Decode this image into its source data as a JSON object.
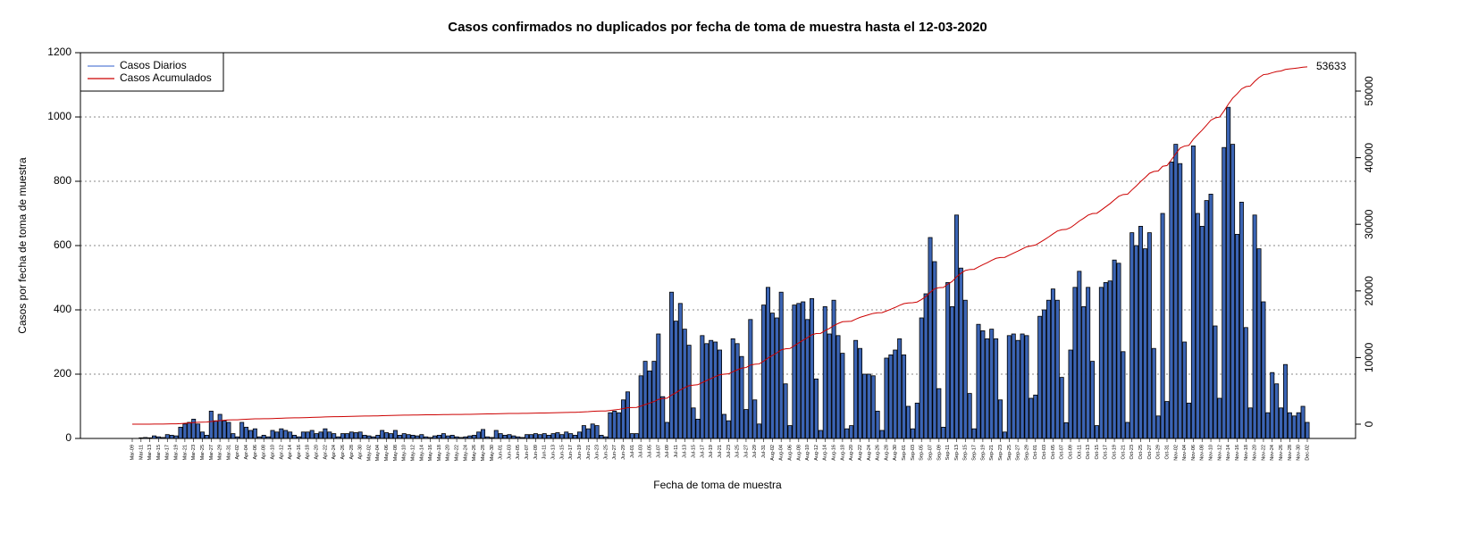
{
  "chart_data": {
    "type": "bar",
    "title": "Casos confirmados no duplicados por fecha de toma de muestra hasta el 12-03-2020",
    "x_label": "Fecha de toma de muestra",
    "y_label": "Casos por fecha de toma de muestra",
    "categories": [
      "Mar-09",
      null,
      "Mar-11",
      null,
      "Mar-13",
      null,
      "Mar-15",
      null,
      "Mar-17",
      null,
      "Mar-19",
      null,
      "Mar-21",
      null,
      "Mar-23",
      null,
      "Mar-25",
      null,
      "Mar-27",
      null,
      "Mar-29",
      null,
      "Mar-31",
      null,
      "Apr-02",
      null,
      "Apr-04",
      null,
      "Apr-06",
      null,
      "Apr-08",
      null,
      "Apr-10",
      null,
      "Apr-12",
      null,
      "Apr-14",
      null,
      "Apr-16",
      null,
      "Apr-18",
      null,
      "Apr-20",
      null,
      "Apr-22",
      null,
      "Apr-24",
      null,
      "Apr-26",
      null,
      "Apr-28",
      null,
      "Apr-30",
      null,
      "May-02",
      null,
      "May-04",
      null,
      "May-06",
      null,
      "May-08",
      null,
      "May-10",
      null,
      "May-12",
      null,
      "May-14",
      null,
      "May-16",
      null,
      "May-18",
      null,
      "May-20",
      null,
      "May-22",
      null,
      "May-24",
      null,
      "May-26",
      null,
      "May-28",
      null,
      "May-30",
      null,
      "Jun-01",
      null,
      "Jun-03",
      null,
      "Jun-05",
      null,
      "Jun-07",
      null,
      "Jun-09",
      null,
      "Jun-11",
      null,
      "Jun-13",
      null,
      "Jun-15",
      null,
      "Jun-17",
      null,
      "Jun-19",
      null,
      "Jun-21",
      null,
      "Jun-23",
      null,
      "Jun-25",
      null,
      "Jun-27",
      null,
      "Jun-29",
      null,
      "Jul-01",
      null,
      "Jul-03",
      null,
      "Jul-05",
      null,
      "Jul-07",
      null,
      "Jul-09",
      null,
      "Jul-11",
      null,
      "Jul-13",
      null,
      "Jul-15",
      null,
      "Jul-17",
      null,
      "Jul-19",
      null,
      "Jul-21",
      null,
      "Jul-23",
      null,
      "Jul-25",
      null,
      "Jul-27",
      null,
      "Jul-29",
      null,
      "Jul-31",
      null,
      "Aug-02",
      null,
      "Aug-04",
      null,
      "Aug-06",
      null,
      "Aug-08",
      null,
      "Aug-10",
      null,
      "Aug-12",
      null,
      "Aug-14",
      null,
      "Aug-16",
      null,
      "Aug-18",
      null,
      "Aug-20",
      null,
      "Aug-22",
      null,
      "Aug-24",
      null,
      "Aug-26",
      null,
      "Aug-28",
      null,
      "Aug-30",
      null,
      "Sep-01",
      null,
      "Sep-03",
      null,
      "Sep-05",
      null,
      "Sep-07",
      null,
      "Sep-09",
      null,
      "Sep-11",
      null,
      "Sep-13",
      null,
      "Sep-15",
      null,
      "Sep-17",
      null,
      "Sep-19",
      null,
      "Sep-21",
      null,
      "Sep-23",
      null,
      "Sep-25",
      null,
      "Sep-27",
      null,
      "Sep-29",
      null,
      "Oct-01",
      null,
      "Oct-03",
      null,
      "Oct-05",
      null,
      "Oct-07",
      null,
      "Oct-09",
      null,
      "Oct-11",
      null,
      "Oct-13",
      null,
      "Oct-15",
      null,
      "Oct-17",
      null,
      "Oct-19",
      null,
      "Oct-21",
      null,
      "Oct-23",
      null,
      "Oct-25",
      null,
      "Oct-27",
      null,
      "Oct-29",
      null,
      "Oct-31",
      null,
      "Nov-02",
      null,
      "Nov-04",
      null,
      "Nov-06",
      null,
      "Nov-08",
      null,
      "Nov-10",
      null,
      "Nov-12",
      null,
      "Nov-14",
      null,
      "Nov-16",
      null,
      "Nov-18",
      null,
      "Nov-20",
      null,
      "Nov-22",
      null,
      "Nov-24",
      null,
      "Nov-26",
      null,
      "Nov-28",
      null,
      "Nov-30",
      null,
      "Dec-02"
    ],
    "series": [
      {
        "name": "Casos Diarios",
        "color": "#3b64b4",
        "line_color": "#5b7fd6",
        "values": [
          0,
          0,
          2,
          3,
          2,
          8,
          5,
          3,
          12,
          10,
          8,
          35,
          45,
          50,
          60,
          45,
          20,
          10,
          85,
          55,
          75,
          55,
          50,
          15,
          5,
          50,
          35,
          25,
          30,
          5,
          10,
          5,
          25,
          20,
          30,
          25,
          20,
          10,
          5,
          20,
          20,
          25,
          15,
          20,
          30,
          20,
          15,
          5,
          15,
          15,
          20,
          18,
          20,
          10,
          8,
          5,
          10,
          25,
          18,
          15,
          25,
          10,
          15,
          12,
          10,
          8,
          12,
          5,
          3,
          8,
          10,
          15,
          8,
          10,
          5,
          3,
          5,
          8,
          10,
          20,
          28,
          5,
          3,
          25,
          15,
          10,
          12,
          8,
          5,
          3,
          12,
          12,
          15,
          12,
          15,
          10,
          15,
          18,
          12,
          20,
          15,
          10,
          20,
          40,
          30,
          45,
          40,
          10,
          5,
          80,
          85,
          80,
          120,
          145,
          15,
          15,
          195,
          240,
          210,
          240,
          325,
          130,
          50,
          455,
          365,
          420,
          340,
          290,
          95,
          60,
          320,
          295,
          305,
          300,
          275,
          75,
          55,
          310,
          295,
          255,
          90,
          370,
          120,
          45,
          415,
          470,
          390,
          375,
          455,
          170,
          40,
          415,
          420,
          425,
          370,
          435,
          185,
          25,
          410,
          325,
          430,
          320,
          265,
          30,
          40,
          305,
          280,
          200,
          200,
          195,
          85,
          25,
          250,
          260,
          275,
          310,
          260,
          100,
          30,
          110,
          375,
          450,
          625,
          550,
          155,
          35,
          485,
          410,
          695,
          530,
          430,
          140,
          30,
          355,
          335,
          310,
          340,
          310,
          120,
          20,
          320,
          325,
          305,
          325,
          320,
          125,
          135,
          380,
          400,
          430,
          465,
          430,
          190,
          49,
          275,
          470,
          520,
          410,
          470,
          240,
          40,
          470,
          485,
          490,
          555,
          545,
          270,
          50,
          640,
          600,
          660,
          590,
          640,
          280,
          70,
          700,
          115,
          860,
          915,
          855,
          300,
          110,
          910,
          700,
          660,
          740,
          760,
          350,
          125,
          905,
          1030,
          915,
          635,
          735,
          345,
          95,
          695,
          590,
          425,
          80,
          205,
          170,
          95,
          230,
          80,
          70,
          80,
          100,
          50
        ]
      },
      {
        "name": "Casos Acumulados",
        "color": "#cc0000",
        "axis": "y2",
        "values": [
          0,
          0,
          2,
          5,
          7,
          15,
          20,
          23,
          35,
          45,
          53,
          88,
          133,
          183,
          243,
          288,
          308,
          318,
          403,
          458,
          533,
          588,
          638,
          653,
          658,
          708,
          743,
          768,
          798,
          803,
          813,
          818,
          843,
          863,
          893,
          918,
          938,
          948,
          953,
          973,
          993,
          1018,
          1033,
          1053,
          1083,
          1103,
          1118,
          1123,
          1138,
          1153,
          1173,
          1191,
          1211,
          1221,
          1229,
          1234,
          1244,
          1269,
          1287,
          1302,
          1327,
          1337,
          1352,
          1364,
          1374,
          1382,
          1394,
          1399,
          1402,
          1410,
          1420,
          1435,
          1443,
          1453,
          1458,
          1461,
          1466,
          1474,
          1484,
          1504,
          1532,
          1537,
          1540,
          1565,
          1580,
          1590,
          1602,
          1610,
          1615,
          1618,
          1630,
          1642,
          1657,
          1669,
          1684,
          1694,
          1709,
          1727,
          1739,
          1759,
          1774,
          1784,
          1804,
          1844,
          1874,
          1919,
          1959,
          1969,
          1974,
          2054,
          2139,
          2219,
          2339,
          2484,
          2499,
          2514,
          2709,
          2949,
          3159,
          3399,
          3724,
          3854,
          3904,
          4359,
          4724,
          5144,
          5484,
          5774,
          5869,
          5929,
          6249,
          6544,
          6849,
          7149,
          7424,
          7499,
          7554,
          7864,
          8159,
          8414,
          8504,
          8874,
          8994,
          9039,
          9454,
          9924,
          10314,
          10689,
          11144,
          11314,
          11354,
          11769,
          12189,
          12614,
          12984,
          13419,
          13604,
          13629,
          14039,
          14364,
          14794,
          15114,
          15379,
          15409,
          15449,
          15754,
          16034,
          16234,
          16434,
          16629,
          16714,
          16739,
          16989,
          17249,
          17524,
          17834,
          18094,
          18194,
          18224,
          18334,
          18709,
          19159,
          19784,
          20334,
          20489,
          20524,
          21009,
          21419,
          22114,
          22644,
          23074,
          23214,
          23244,
          23599,
          23934,
          24244,
          24584,
          24894,
          25014,
          25034,
          25354,
          25679,
          25984,
          26309,
          26629,
          26754,
          26889,
          27269,
          27669,
          28099,
          28564,
          28994,
          29184,
          29233,
          29508,
          29978,
          30498,
          30908,
          31378,
          31618,
          31658,
          32128,
          32613,
          33103,
          33658,
          34203,
          34473,
          34523,
          35163,
          35763,
          36423,
          37013,
          37653,
          37933,
          38003,
          38703,
          38818,
          39678,
          40593,
          41448,
          41748,
          41858,
          42768,
          43468,
          44128,
          44868,
          45628,
          45978,
          46103,
          47008,
          48038,
          48953,
          49588,
          50323,
          50668,
          50763,
          51458,
          52048,
          52473,
          52553,
          52758,
          52928,
          53023,
          53253,
          53333,
          53403,
          53483,
          53583,
          53633
        ]
      }
    ],
    "ylim": [
      0,
      1200
    ],
    "yticks": [
      0,
      200,
      400,
      600,
      800,
      1000,
      1200
    ],
    "y2lim": [
      -2145,
      55764
    ],
    "y2ticks": [
      0,
      10000,
      20000,
      30000,
      40000,
      50000
    ],
    "grid": true,
    "legend": "top-left"
  }
}
